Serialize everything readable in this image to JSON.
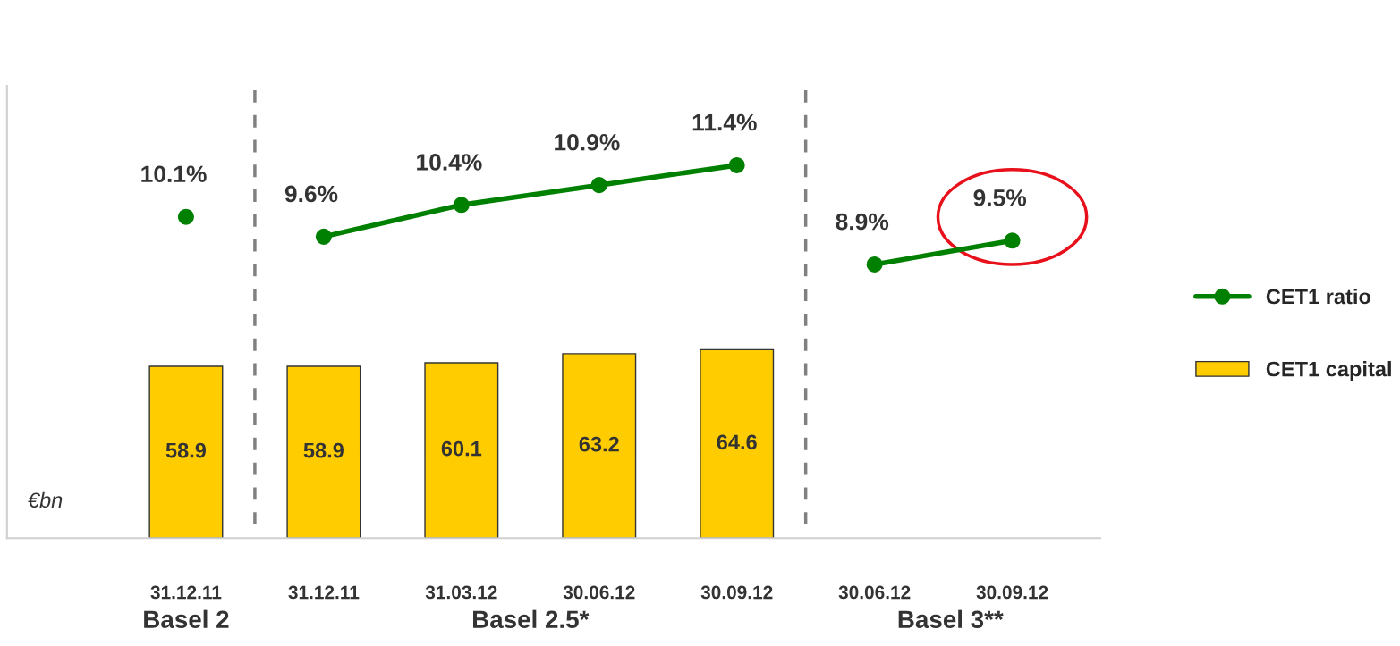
{
  "chart_data": {
    "type": "bar",
    "categories": [
      "31.12.11",
      "31.12.11",
      "31.03.12",
      "30.06.12",
      "30.09.12",
      "30.06.12",
      "30.09.12"
    ],
    "annotations": [
      "€bn",
      "Basel 2",
      "Basel 2.5*",
      "Basel 3**"
    ],
    "series": [
      {
        "name": "CET1 capital",
        "color": "#ffcc00",
        "values": [
          58.9,
          58.9,
          60.1,
          63.2,
          64.6,
          null,
          null
        ],
        "value_labels": [
          "58.9",
          "58.9",
          "60.1",
          "63.2",
          "64.6",
          null,
          null
        ]
      },
      {
        "name": "CET1 ratio",
        "type": "line",
        "axis": "y2",
        "color": "#008000",
        "values": [
          10.1,
          null,
          null,
          null,
          null,
          null,
          null
        ],
        "value_labels": [
          "10.1%",
          null,
          null,
          null,
          null,
          null,
          null
        ]
      },
      {
        "type": "line",
        "axis": "y2",
        "color": "#008000",
        "values": [
          null,
          9.6,
          10.4,
          10.9,
          11.4,
          null,
          null
        ],
        "value_labels": [
          null,
          "9.6%",
          "10.4%",
          "10.9%",
          "11.4%",
          null,
          null
        ]
      },
      {
        "type": "line",
        "axis": "y2",
        "color": "#008000",
        "values": [
          null,
          null,
          null,
          null,
          null,
          8.9,
          9.5
        ],
        "value_labels": [
          null,
          null,
          null,
          null,
          null,
          "8.9%",
          "9.5%"
        ]
      }
    ],
    "ylim": [
      0,
      155
    ],
    "y2lim": [
      2.0,
      13.4
    ],
    "legend": "right",
    "marker": "circle",
    "line_style": "solid",
    "grid": false
  }
}
